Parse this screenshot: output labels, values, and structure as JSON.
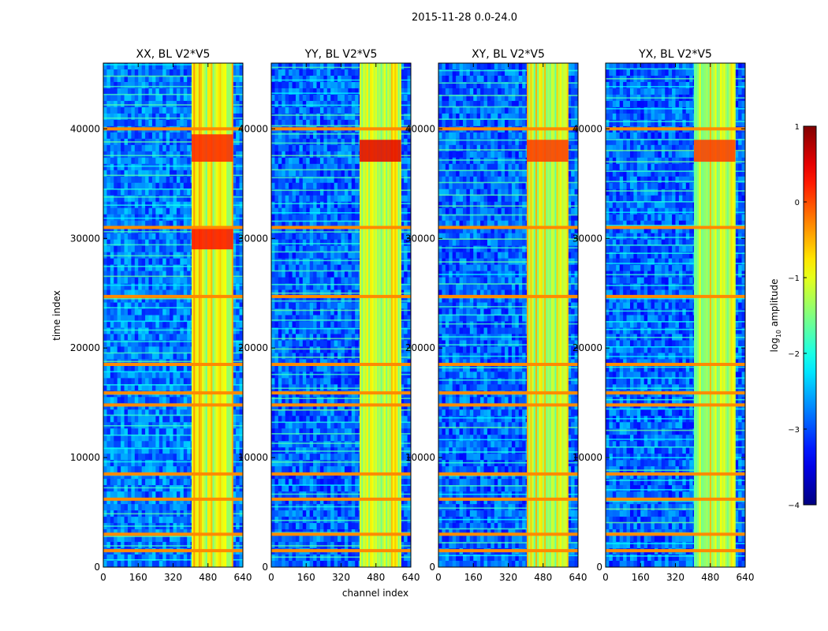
{
  "suptitle": "2015-11-28 0.0-24.0",
  "xlabel": "channel index",
  "ylabel": "time index",
  "colorbar": {
    "label_prefix": "log",
    "label_sub": "10",
    "label_suffix": " amplitude",
    "min": -4,
    "max": 1,
    "ticks": [
      1,
      0,
      -1,
      -2,
      -3,
      -4
    ],
    "tick_labels": [
      "1",
      "0",
      "−1",
      "−2",
      "−3",
      "−4"
    ],
    "colormap": "jet"
  },
  "chart_data": [
    {
      "type": "heatmap",
      "title": "XX, BL V2*V5",
      "xlim": [
        0,
        640
      ],
      "ylim": [
        0,
        46000
      ],
      "xticks": [
        0,
        160,
        320,
        480,
        640
      ],
      "yticks": [
        0,
        10000,
        20000,
        30000,
        40000
      ],
      "xtick_labels": [
        "0",
        "160",
        "320",
        "480",
        "640"
      ],
      "ytick_labels": [
        "0",
        "10000",
        "20000",
        "30000",
        "40000"
      ],
      "background_level": -2.8,
      "rfi_channel_band": [
        405,
        595
      ],
      "rfi_level": -1.0,
      "rfi_time_rows": [
        1500,
        3000,
        6200,
        8500,
        14800,
        15900,
        18500,
        24700,
        31000,
        40000
      ],
      "rfi_row_level": -0.3,
      "hot_spots": [
        {
          "t_range": [
            29000,
            31000
          ],
          "ch_range": [
            405,
            595
          ],
          "level": 0.3
        },
        {
          "t_range": [
            37000,
            39500
          ],
          "ch_range": [
            405,
            595
          ],
          "level": 0.2
        }
      ]
    },
    {
      "type": "heatmap",
      "title": "YY, BL V2*V5",
      "xlim": [
        0,
        640
      ],
      "ylim": [
        0,
        46000
      ],
      "xticks": [
        0,
        160,
        320,
        480,
        640
      ],
      "yticks": [
        0,
        10000,
        20000,
        30000,
        40000
      ],
      "xtick_labels": [
        "0",
        "160",
        "320",
        "480",
        "640"
      ],
      "ytick_labels": [
        "0",
        "10000",
        "20000",
        "30000",
        "40000"
      ],
      "background_level": -2.9,
      "rfi_channel_band": [
        405,
        595
      ],
      "rfi_level": -1.0,
      "rfi_time_rows": [
        1500,
        3000,
        6200,
        8500,
        14800,
        15900,
        18500,
        24700,
        31000,
        40000
      ],
      "rfi_row_level": -0.3,
      "hot_spots": [
        {
          "t_range": [
            37000,
            39000
          ],
          "ch_range": [
            405,
            595
          ],
          "level": 0.5
        }
      ]
    },
    {
      "type": "heatmap",
      "title": "XY, BL V2*V5",
      "xlim": [
        0,
        640
      ],
      "ylim": [
        0,
        46000
      ],
      "xticks": [
        0,
        160,
        320,
        480,
        640
      ],
      "yticks": [
        0,
        10000,
        20000,
        30000,
        40000
      ],
      "xtick_labels": [
        "0",
        "160",
        "320",
        "480",
        "640"
      ],
      "ytick_labels": [
        "0",
        "10000",
        "20000",
        "30000",
        "40000"
      ],
      "background_level": -2.9,
      "rfi_channel_band": [
        405,
        595
      ],
      "rfi_level": -1.1,
      "rfi_time_rows": [
        1500,
        3000,
        6200,
        8500,
        14800,
        15900,
        18500,
        24700,
        31000,
        40000
      ],
      "rfi_row_level": -0.3,
      "hot_spots": [
        {
          "t_range": [
            37000,
            39000
          ],
          "ch_range": [
            405,
            595
          ],
          "level": 0.1
        }
      ]
    },
    {
      "type": "heatmap",
      "title": "YX, BL V2*V5",
      "xlim": [
        0,
        640
      ],
      "ylim": [
        0,
        46000
      ],
      "xticks": [
        0,
        160,
        320,
        480,
        640
      ],
      "yticks": [
        0,
        10000,
        20000,
        30000,
        40000
      ],
      "xtick_labels": [
        "0",
        "160",
        "320",
        "480",
        "640"
      ],
      "ytick_labels": [
        "0",
        "10000",
        "20000",
        "30000",
        "40000"
      ],
      "background_level": -2.9,
      "rfi_channel_band": [
        405,
        595
      ],
      "rfi_level": -1.1,
      "rfi_time_rows": [
        1500,
        3000,
        6200,
        8500,
        14800,
        15900,
        18500,
        24700,
        31000,
        40000
      ],
      "rfi_row_level": -0.3,
      "hot_spots": [
        {
          "t_range": [
            37000,
            39000
          ],
          "ch_range": [
            405,
            595
          ],
          "level": 0.1
        }
      ]
    }
  ]
}
